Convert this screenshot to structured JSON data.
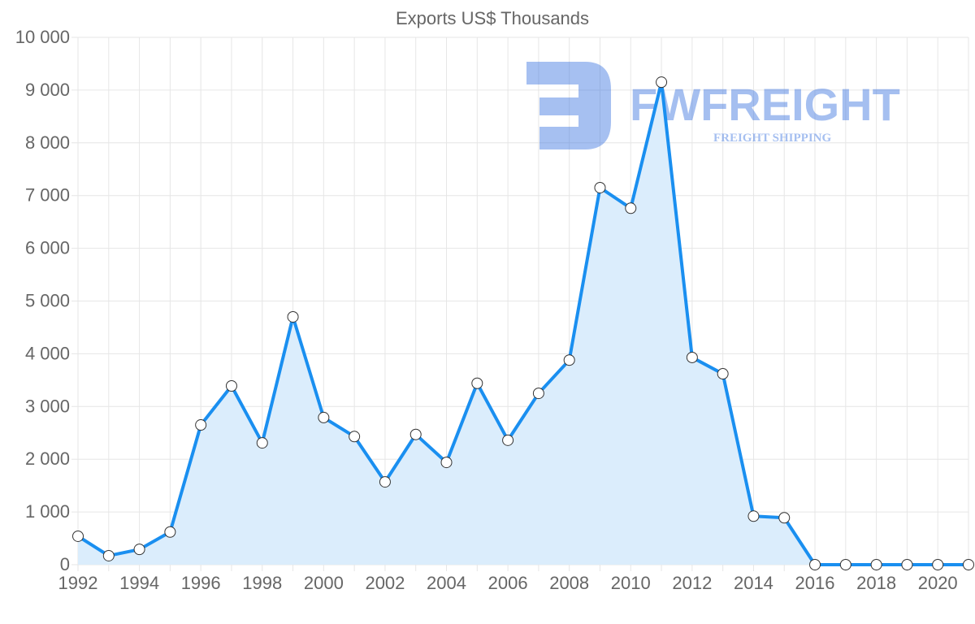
{
  "chart_data": {
    "type": "area",
    "title": "Exports US$ Thousands",
    "xlabel": "",
    "ylabel": "",
    "ylim": [
      0,
      10000
    ],
    "y_ticks": [
      0,
      1000,
      2000,
      3000,
      4000,
      5000,
      6000,
      7000,
      8000,
      9000,
      10000
    ],
    "y_tick_labels": [
      "0",
      "1 000",
      "2 000",
      "3 000",
      "4 000",
      "5 000",
      "6 000",
      "7 000",
      "8 000",
      "9 000",
      "10 000"
    ],
    "x_tick_labels": [
      "1992",
      "1994",
      "1996",
      "1998",
      "2000",
      "2002",
      "2004",
      "2006",
      "2008",
      "2010",
      "2012",
      "2014",
      "2016",
      "2018",
      "2020"
    ],
    "grid": true,
    "x": [
      1992,
      1993,
      1994,
      1995,
      1996,
      1997,
      1998,
      1999,
      2000,
      2001,
      2002,
      2003,
      2004,
      2005,
      2006,
      2007,
      2008,
      2009,
      2010,
      2011,
      2012,
      2013,
      2014,
      2015,
      2016,
      2017,
      2018,
      2019,
      2020,
      2021
    ],
    "series": [
      {
        "name": "Exports",
        "values": [
          540,
          170,
          290,
          620,
          2650,
          3390,
          2310,
          4700,
          2790,
          2430,
          1570,
          2470,
          1940,
          3440,
          2360,
          3250,
          3880,
          7150,
          6760,
          9150,
          3930,
          3620,
          920,
          890,
          0,
          0,
          0,
          0,
          0,
          0
        ]
      }
    ],
    "colors": {
      "line": "#1a8ff0",
      "fill": "#dbedfc",
      "grid": "#e6e6e6"
    }
  },
  "watermark": {
    "brand": "FWFREIGHT",
    "tagline": "FREIGHT SHIPPING"
  }
}
